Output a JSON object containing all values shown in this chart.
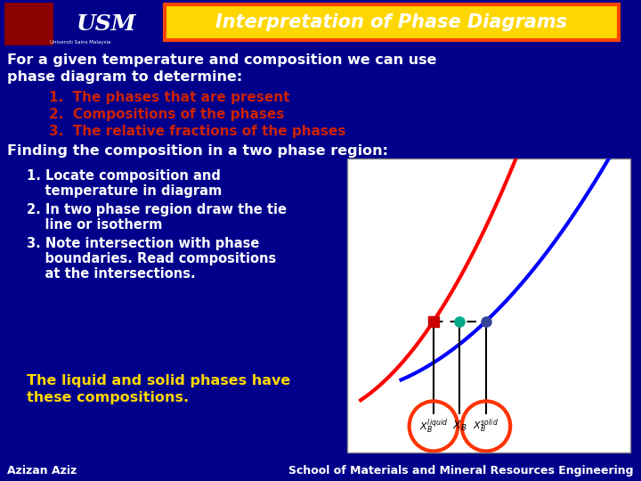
{
  "bg_color": "#00008B",
  "title_text": "Interpretation of Phase Diagrams",
  "title_bg": "#FFD700",
  "title_border": "#FF4500",
  "title_text_color": "#FFFFFF",
  "main_text_color": "#FFFFFF",
  "red_list_color": "#CC2200",
  "yellow_text_color": "#FFD700",
  "footer_left": "Azizan Aziz",
  "footer_right": "School of Materials and Mineral Resources Engineering",
  "intro_line1": "For a given temperature and composition we can use",
  "intro_line2": "phase diagram to determine:",
  "list_items": [
    "The phases that are present",
    "Compositions of the phases",
    "The relative fractions of the phases"
  ],
  "finding_text": "Finding the composition in a two phase region:",
  "step1a": "1. Locate composition and",
  "step1b": "    temperature in diagram",
  "step2a": "2. In two phase region draw the tie",
  "step2b": "    line or isotherm",
  "step3a": "3. Note intersection with phase",
  "step3b": "    boundaries. Read compositions",
  "step3c": "    at the intersections.",
  "conclusion_line1": "The liquid and solid phases have",
  "conclusion_line2": "these compositions.",
  "diagram_bg": "#FFFFFF"
}
